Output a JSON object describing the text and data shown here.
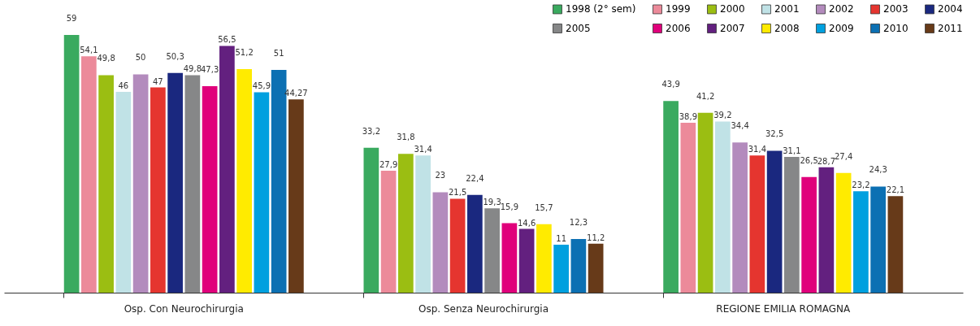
{
  "chart_data": {
    "type": "bar",
    "categories": [
      "Osp. Con Neurochirurgia",
      "Osp. Senza Neurochirurgia",
      "REGIONE EMILIA ROMAGNA"
    ],
    "legend": "top right",
    "grid": false,
    "series": [
      {
        "name": "1998 (2° sem)",
        "color": "#3aaa5f",
        "values": [
          59,
          33.2,
          43.9
        ],
        "value_labels": [
          "59",
          "33,2",
          "43,9"
        ]
      },
      {
        "name": "1999",
        "color": "#ec8a9a",
        "values": [
          54.1,
          27.9,
          38.9
        ],
        "value_labels": [
          "54,1",
          "27,9",
          "38,9"
        ]
      },
      {
        "name": "2000",
        "color": "#9bbe12",
        "values": [
          49.8,
          31.8,
          41.2
        ],
        "value_labels": [
          "49,8",
          "31,8",
          "41,2"
        ]
      },
      {
        "name": "2001",
        "color": "#c0e2e6",
        "values": [
          46,
          31.4,
          39.2
        ],
        "value_labels": [
          "46",
          "31,4",
          "39,2"
        ]
      },
      {
        "name": "2002",
        "color": "#b38bbd",
        "values": [
          50,
          23,
          34.4
        ],
        "value_labels": [
          "50",
          "23",
          "34,4"
        ]
      },
      {
        "name": "2003",
        "color": "#e5352f",
        "values": [
          47,
          21.5,
          31.4
        ],
        "value_labels": [
          "47",
          "21,5",
          "31,4"
        ]
      },
      {
        "name": "2004",
        "color": "#1a287f",
        "values": [
          50.3,
          22.4,
          32.5
        ],
        "value_labels": [
          "50,3",
          "22,4",
          "32,5"
        ]
      },
      {
        "name": "2005",
        "color": "#868788",
        "values": [
          49.8,
          19.3,
          31.1
        ],
        "value_labels": [
          "49,8",
          "19,3",
          "31,1"
        ]
      },
      {
        "name": "2006",
        "color": "#e0007b",
        "values": [
          47.3,
          15.9,
          26.5
        ],
        "value_labels": [
          "47,3",
          "15,9",
          "26,5"
        ]
      },
      {
        "name": "2007",
        "color": "#63207f",
        "values": [
          56.5,
          14.6,
          28.7
        ],
        "value_labels": [
          "56,5",
          "14,6",
          "28,7"
        ]
      },
      {
        "name": "2008",
        "color": "#ffeb00",
        "values": [
          51.2,
          15.7,
          27.4
        ],
        "value_labels": [
          "51,2",
          "15,7",
          "27,4"
        ]
      },
      {
        "name": "2009",
        "color": "#00a0df",
        "values": [
          45.9,
          11,
          23.2
        ],
        "value_labels": [
          "45,9",
          "11",
          "23,2"
        ]
      },
      {
        "name": "2010",
        "color": "#0c70b3",
        "values": [
          51,
          12.3,
          24.3
        ],
        "value_labels": [
          "51",
          "12,3",
          "24,3"
        ]
      },
      {
        "name": "2011",
        "color": "#673a19",
        "values": [
          44.27,
          11.2,
          22.1
        ],
        "value_labels": [
          "44,27",
          "11,2",
          "22,1"
        ]
      }
    ]
  }
}
